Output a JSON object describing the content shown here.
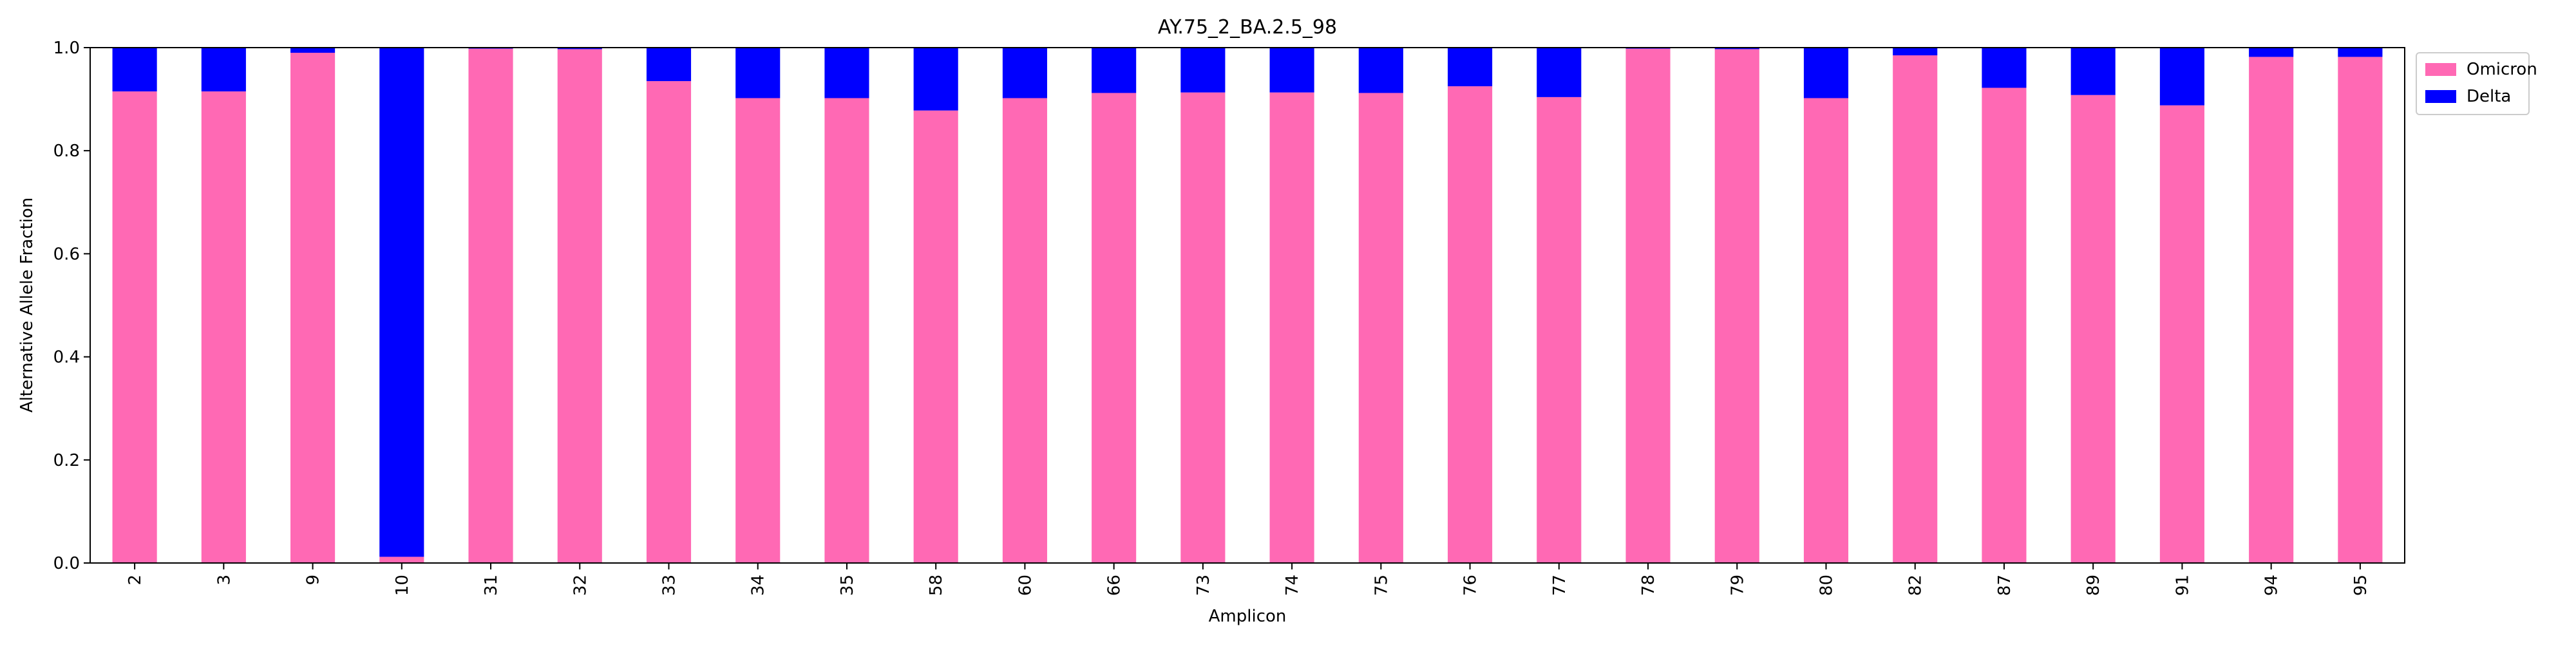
{
  "chart_data": {
    "type": "bar",
    "stacked": true,
    "title": "AY.75_2_BA.2.5_98",
    "xlabel": "Amplicon",
    "ylabel": "Alternative Allele Fraction",
    "ylim": [
      0,
      1.0
    ],
    "yticks": [
      "0.0",
      "0.2",
      "0.4",
      "0.6",
      "0.8",
      "1.0"
    ],
    "grid": false,
    "legend_position": "top-right, outside plot",
    "categories": [
      "2",
      "3",
      "9",
      "10",
      "31",
      "32",
      "33",
      "34",
      "35",
      "58",
      "60",
      "66",
      "73",
      "74",
      "75",
      "76",
      "77",
      "78",
      "79",
      "80",
      "82",
      "87",
      "89",
      "91",
      "94",
      "95"
    ],
    "series": [
      {
        "name": "Omicron",
        "color": "#ff69b4",
        "values": [
          0.915,
          0.915,
          0.99,
          0.012,
          0.998,
          0.997,
          0.935,
          0.902,
          0.902,
          0.878,
          0.902,
          0.912,
          0.913,
          0.913,
          0.912,
          0.925,
          0.904,
          0.998,
          0.997,
          0.902,
          0.985,
          0.922,
          0.908,
          0.888,
          0.982,
          0.982
        ]
      },
      {
        "name": "Delta",
        "color": "#0000ff",
        "values": [
          0.085,
          0.085,
          0.01,
          0.988,
          0.002,
          0.003,
          0.065,
          0.098,
          0.098,
          0.122,
          0.098,
          0.088,
          0.087,
          0.087,
          0.088,
          0.075,
          0.096,
          0.002,
          0.003,
          0.098,
          0.015,
          0.078,
          0.092,
          0.112,
          0.018,
          0.018
        ]
      }
    ]
  }
}
